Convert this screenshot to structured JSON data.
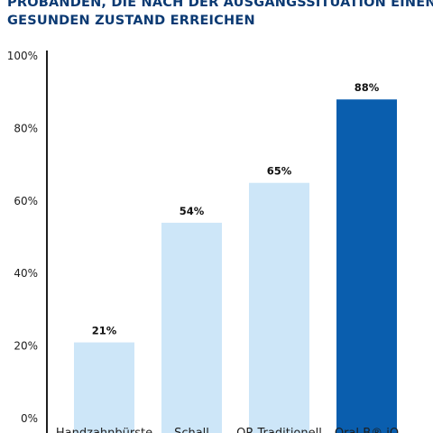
{
  "chart_data": {
    "type": "bar",
    "title_lines": [
      "PROBANDEN, DIE NACH DER AUSGANGSSITUATION EINEN",
      "GESUNDEN ZUSTAND ERREICHEN"
    ],
    "categories": [
      "Handzahnbürste",
      "Schall",
      "OR Traditionell",
      "Oral-B® iO"
    ],
    "values": [
      21,
      54,
      65,
      88
    ],
    "value_labels": [
      "21%",
      "54%",
      "65%",
      "88%"
    ],
    "colors": [
      "#cde6f8",
      "#cde6f8",
      "#cde6f8",
      "#0a5eae"
    ],
    "ylim": [
      0,
      100
    ],
    "yticks": [
      0,
      20,
      40,
      60,
      80,
      100
    ],
    "ytick_labels": [
      "0%",
      "20%",
      "40%",
      "60%",
      "80%",
      "100%"
    ],
    "grid": false,
    "axis_color": "#1f1f1f"
  }
}
